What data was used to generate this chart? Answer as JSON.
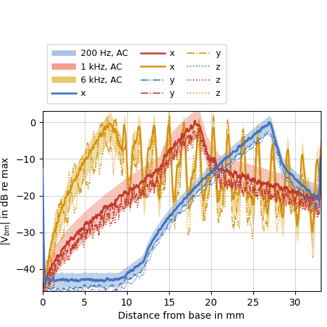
{
  "blue_color": "#4472C4",
  "blue_fill": "#A8C4E0",
  "red_color": "#C0392B",
  "red_fill": "#F0A090",
  "orange_color": "#D4900A",
  "orange_fill": "#E8C96A",
  "xlim": [
    0,
    33
  ],
  "ylim": [
    -46,
    3
  ],
  "xlabel": "Distance from base in mm",
  "ylabel": "|V$_{bm}$| in dB re max",
  "xticks": [
    0,
    5,
    10,
    15,
    20,
    25,
    30
  ],
  "yticks": [
    0,
    -10,
    -20,
    -30,
    -40
  ],
  "legend_ac_labels": [
    "200 Hz, AC",
    "1 kHz, AC",
    "6 kHz, AC"
  ]
}
